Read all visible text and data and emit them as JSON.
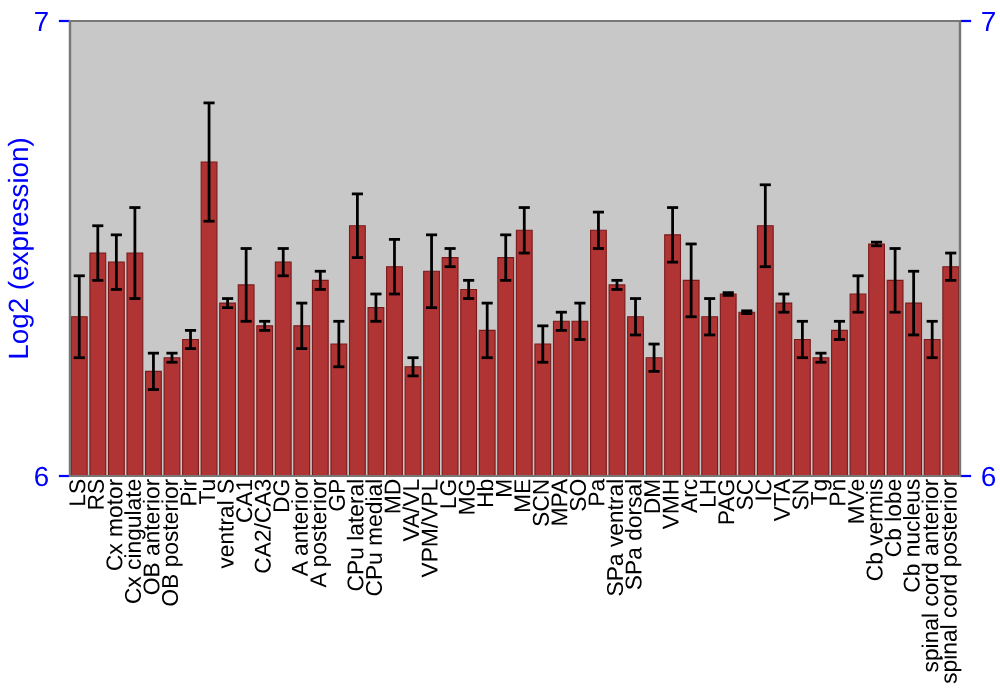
{
  "chart_data": {
    "type": "bar",
    "ylabel": "Log2 (expression)",
    "categories": [
      "LS",
      "RS",
      "Cx motor",
      "Cx cingulate",
      "OB anterior",
      "OB posterior",
      "Pir",
      "Tu",
      "ventral S",
      "CA1",
      "CA2/CA3",
      "DG",
      "A anterior",
      "A posterior",
      "GP",
      "CPu lateral",
      "CPu medial",
      "MD",
      "VA/VL",
      "VPM/VPL",
      "LG",
      "MG",
      "Hb",
      "M",
      "ME",
      "SCN",
      "MPA",
      "SO",
      "Pa",
      "SPa ventral",
      "SPa dorsal",
      "DM",
      "VMH",
      "Arc",
      "LH",
      "PAG",
      "SC",
      "IC",
      "VTA",
      "SN",
      "Tg",
      "Pn",
      "MVe",
      "Cb vermis",
      "Cb lobe",
      "Cb nucleus",
      "spinal cord anterior",
      "spinal cord posterior"
    ],
    "values": [
      6.35,
      6.49,
      6.47,
      6.49,
      6.23,
      6.26,
      6.3,
      6.69,
      6.38,
      6.42,
      6.33,
      6.47,
      6.33,
      6.43,
      6.29,
      6.55,
      6.37,
      6.46,
      6.24,
      6.45,
      6.48,
      6.41,
      6.32,
      6.48,
      6.54,
      6.29,
      6.34,
      6.34,
      6.54,
      6.42,
      6.35,
      6.26,
      6.53,
      6.43,
      6.35,
      6.4,
      6.36,
      6.55,
      6.38,
      6.3,
      6.26,
      6.32,
      6.4,
      6.51,
      6.43,
      6.38,
      6.3,
      6.46
    ],
    "errors": [
      0.09,
      0.06,
      0.06,
      0.1,
      0.04,
      0.01,
      0.02,
      0.13,
      0.01,
      0.08,
      0.01,
      0.03,
      0.05,
      0.02,
      0.05,
      0.07,
      0.03,
      0.06,
      0.02,
      0.08,
      0.02,
      0.02,
      0.06,
      0.05,
      0.05,
      0.04,
      0.02,
      0.04,
      0.04,
      0.01,
      0.04,
      0.03,
      0.06,
      0.08,
      0.04,
      0.003,
      0.003,
      0.09,
      0.02,
      0.04,
      0.01,
      0.02,
      0.04,
      0.004,
      0.07,
      0.07,
      0.04,
      0.03
    ],
    "color": "#b03434",
    "ylim": [
      6,
      7
    ],
    "yticks": [
      6,
      7
    ],
    "y2lim": [
      6,
      7
    ],
    "y2ticks": [
      6,
      7
    ],
    "grid": false,
    "legend": false
  }
}
